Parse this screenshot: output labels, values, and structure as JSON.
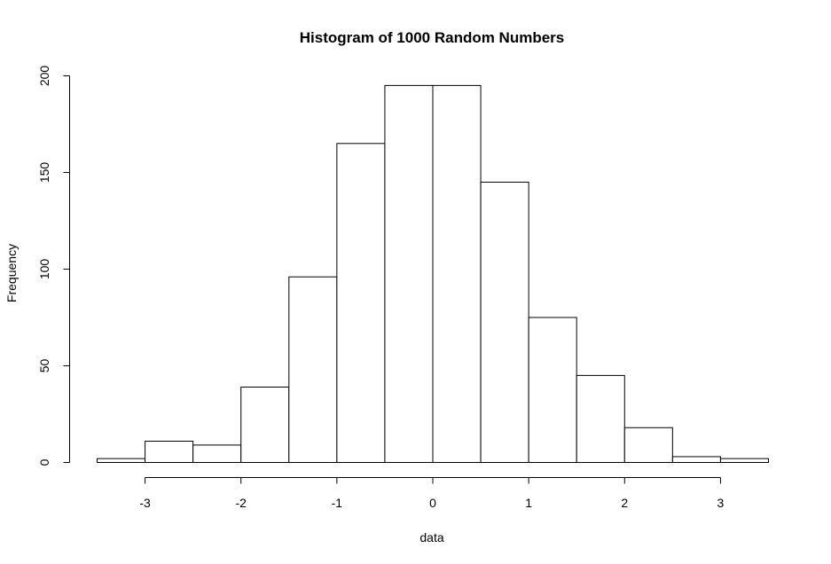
{
  "chart_data": {
    "type": "bar",
    "title": "Histogram of 1000 Random Numbers",
    "xlabel": "data",
    "ylabel": "Frequency",
    "bins": [
      {
        "x0": -3.5,
        "x1": -3.0,
        "count": 2
      },
      {
        "x0": -3.0,
        "x1": -2.5,
        "count": 11
      },
      {
        "x0": -2.5,
        "x1": -2.0,
        "count": 9
      },
      {
        "x0": -2.0,
        "x1": -1.5,
        "count": 39
      },
      {
        "x0": -1.5,
        "x1": -1.0,
        "count": 96
      },
      {
        "x0": -1.0,
        "x1": -0.5,
        "count": 165
      },
      {
        "x0": -0.5,
        "x1": 0.0,
        "count": 195
      },
      {
        "x0": 0.0,
        "x1": 0.5,
        "count": 195
      },
      {
        "x0": 0.5,
        "x1": 1.0,
        "count": 145
      },
      {
        "x0": 1.0,
        "x1": 1.5,
        "count": 75
      },
      {
        "x0": 1.5,
        "x1": 2.0,
        "count": 45
      },
      {
        "x0": 2.0,
        "x1": 2.5,
        "count": 18
      },
      {
        "x0": 2.5,
        "x1": 3.0,
        "count": 3
      },
      {
        "x0": 3.0,
        "x1": 3.5,
        "count": 2
      }
    ],
    "xlim": [
      -3.5,
      3.5
    ],
    "ylim": [
      0,
      200
    ],
    "x_ticks": [
      -3,
      -2,
      -1,
      0,
      1,
      2,
      3
    ],
    "x_tick_labels": [
      "-3",
      "-2",
      "-1",
      "0",
      "1",
      "2",
      "3"
    ],
    "y_ticks": [
      0,
      50,
      100,
      150,
      200
    ],
    "y_tick_labels": [
      "0",
      "50",
      "100",
      "150",
      "200"
    ],
    "grid": false,
    "bar_fill": "#ffffff",
    "bar_stroke": "#000000"
  }
}
